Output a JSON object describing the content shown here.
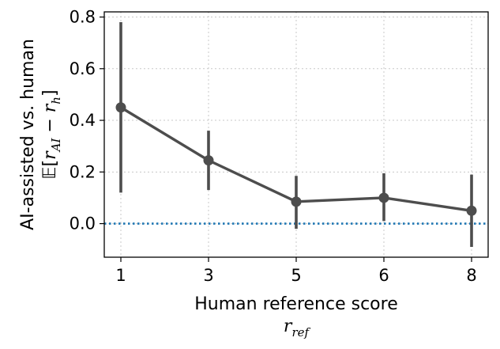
{
  "chart_data": {
    "type": "line",
    "title": "",
    "x": [
      "1",
      "3",
      "5",
      "6",
      "8"
    ],
    "xlabel": "Human reference score",
    "xlabel_symbol": "r",
    "xlabel_symbol_subscript": "ref",
    "ylabel": "AI-assisted vs. human",
    "ylabel_expr": {
      "E": "𝔼",
      "open": "[",
      "r1": "r",
      "sub1": "AI",
      "minus": " − ",
      "r2": "r",
      "sub2": "h",
      "close": "]"
    },
    "ylim": [
      -0.13,
      0.82
    ],
    "yticks": [
      0.0,
      0.2,
      0.4,
      0.6,
      0.8
    ],
    "ytick_labels": [
      "0.0",
      "0.2",
      "0.4",
      "0.6",
      "0.8"
    ],
    "grid": true,
    "series": [
      {
        "values": [
          0.45,
          0.245,
          0.085,
          0.1,
          0.05
        ],
        "error_low": [
          0.12,
          0.13,
          -0.02,
          0.01,
          -0.09
        ],
        "error_high": [
          0.78,
          0.36,
          0.185,
          0.195,
          0.19
        ],
        "color": "#4d4d4d"
      }
    ],
    "reference_line": {
      "y": 0.0,
      "style": "dotted",
      "color": "#1f77b4"
    }
  }
}
